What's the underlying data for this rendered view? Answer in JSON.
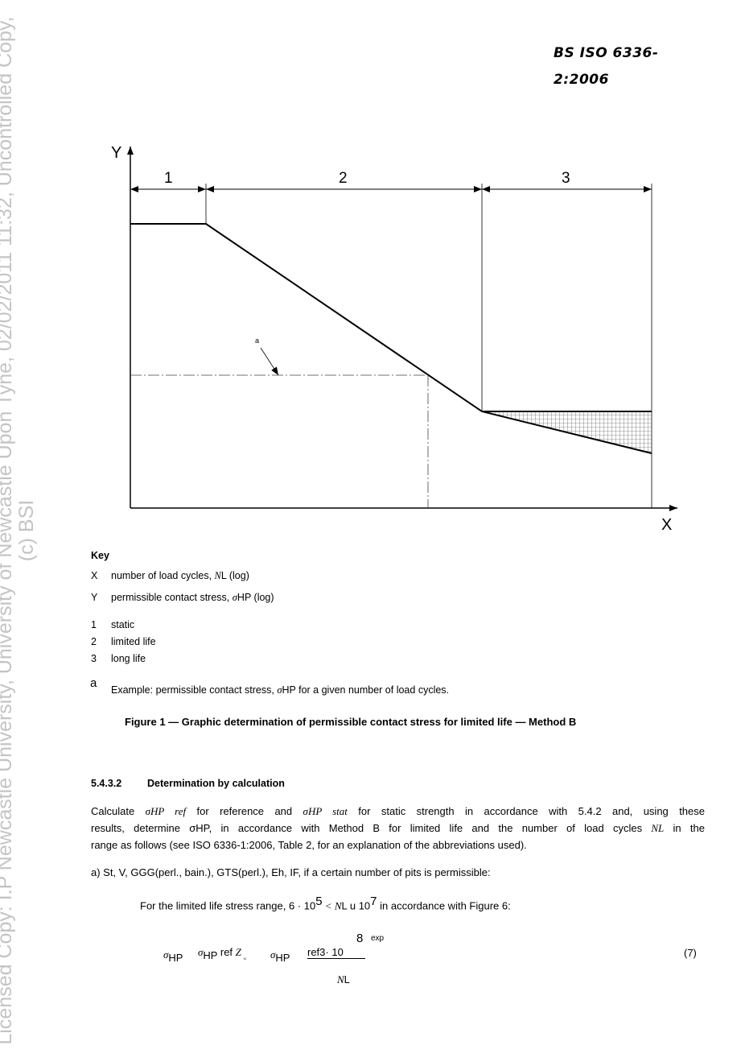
{
  "watermark": {
    "line1": "Licensed Copy: I.P Newcastle University, University of Newcastle Upon Tyne, 02/02/2011 11:32, Uncontrolled Copy,",
    "line2": "(c) BSI"
  },
  "header": {
    "line1": "BS ISO 6336-",
    "line2": "2:2006"
  },
  "figure": {
    "y_axis": "Y",
    "x_axis": "X",
    "regions": [
      "1",
      "2",
      "3"
    ],
    "annotation": "a",
    "caption": "Figure 1 — Graphic determination of permissible contact stress for limited life — Method B"
  },
  "key": {
    "title": "Key",
    "items": [
      {
        "sym": "X",
        "text": "number of load cycles, ",
        "var": "N",
        "sub": "L",
        "tail": " (log)"
      },
      {
        "sym": "Y",
        "text": "permissible contact stress, ",
        "var": "σ",
        "sub": "HP",
        "tail": " (log)"
      },
      {
        "sym": "1",
        "text": "static"
      },
      {
        "sym": "2",
        "text": "limited life"
      },
      {
        "sym": "3",
        "text": "long life"
      },
      {
        "sym": "a",
        "text": "Example: permissible contact stress, ",
        "var": "σ",
        "sub": "HP",
        "tail": " for a given number of load cycles."
      }
    ]
  },
  "section": {
    "number": "5.4.3.2",
    "title": "Determination by calculation",
    "para": [
      "Calculate ",
      "σHP ref",
      " for reference and ",
      "σHP stat",
      " for static strength in accordance with 5.4.2 and, using these",
      "results, determine σHP, in accordance with Method B for limited life and the number of load cycles ",
      "NL",
      " in the",
      "range as follows (see ISO 6336-1:2006, Table 2, for an explanation of the abbreviations used)."
    ],
    "item_a": "a)   St, V, GGG(perl., bain.), GTS(perl.), Eh, IF, if a certain number of pits is permissible:",
    "range_line": [
      "For the limited life stress range, 6 · 10",
      "5",
      " < ",
      "N",
      "L",
      " u 10",
      "7",
      " in accordance with Figure 6:"
    ]
  },
  "equation": {
    "parts": [
      "σ",
      "HP",
      "σ",
      "HP",
      " ref ",
      "Z",
      "N",
      "σ",
      "HP",
      "ref",
      "3· 10",
      "8",
      "exp",
      "N",
      "L"
    ],
    "number": "(7)"
  }
}
